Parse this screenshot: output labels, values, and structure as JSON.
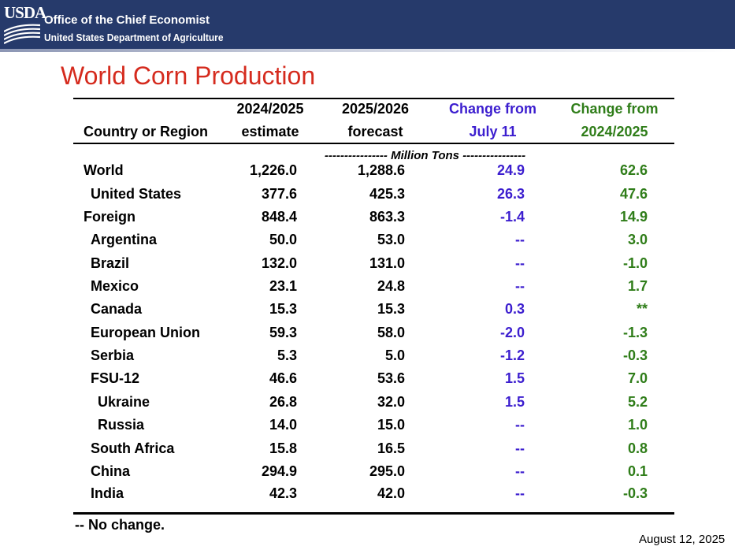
{
  "header": {
    "logo_text": "USDA",
    "office": "Office of the Chief Economist",
    "department": "United States Department of Agriculture"
  },
  "title": "World Corn Production",
  "table": {
    "columns": [
      {
        "line1": "",
        "line2": "Country or Region"
      },
      {
        "line1": "2024/2025",
        "line2": "estimate"
      },
      {
        "line1": "2025/2026",
        "line2": "forecast"
      },
      {
        "line1": "Change from",
        "line2": "July 11"
      },
      {
        "line1": "Change from",
        "line2": "2024/2025"
      }
    ],
    "units": "---------------- Million Tons ----------------",
    "rows": [
      {
        "name": "World",
        "est": "1,226.0",
        "fc": "1,288.6",
        "chg_july": "24.9",
        "chg_prev": "62.6"
      },
      {
        "name": "United States",
        "est": "377.6",
        "fc": "425.3",
        "chg_july": "26.3",
        "chg_prev": "47.6"
      },
      {
        "name": "Foreign",
        "est": "848.4",
        "fc": "863.3",
        "chg_july": "-1.4",
        "chg_prev": "14.9"
      },
      {
        "name": "Argentina",
        "est": "50.0",
        "fc": "53.0",
        "chg_july": "--",
        "chg_prev": "3.0"
      },
      {
        "name": "Brazil",
        "est": "132.0",
        "fc": "131.0",
        "chg_july": "--",
        "chg_prev": "-1.0"
      },
      {
        "name": "Mexico",
        "est": "23.1",
        "fc": "24.8",
        "chg_july": "--",
        "chg_prev": "1.7"
      },
      {
        "name": "Canada",
        "est": "15.3",
        "fc": "15.3",
        "chg_july": "0.3",
        "chg_prev": "**"
      },
      {
        "name": "European Union",
        "est": "59.3",
        "fc": "58.0",
        "chg_july": "-2.0",
        "chg_prev": "-1.3"
      },
      {
        "name": "Serbia",
        "est": "5.3",
        "fc": "5.0",
        "chg_july": "-1.2",
        "chg_prev": "-0.3"
      },
      {
        "name": "FSU-12",
        "est": "46.6",
        "fc": "53.6",
        "chg_july": "1.5",
        "chg_prev": "7.0"
      },
      {
        "name": "Ukraine",
        "est": "26.8",
        "fc": "32.0",
        "chg_july": "1.5",
        "chg_prev": "5.2"
      },
      {
        "name": "Russia",
        "est": "14.0",
        "fc": "15.0",
        "chg_july": "--",
        "chg_prev": "1.0"
      },
      {
        "name": "South Africa",
        "est": "15.8",
        "fc": "16.5",
        "chg_july": "--",
        "chg_prev": "0.8"
      },
      {
        "name": "China",
        "est": "294.9",
        "fc": "295.0",
        "chg_july": "--",
        "chg_prev": "0.1"
      },
      {
        "name": "India",
        "est": "42.3",
        "fc": "42.0",
        "chg_july": "--",
        "chg_prev": "-0.3"
      }
    ]
  },
  "footnote": "-- No change.",
  "date": "August 12, 2025",
  "colors": {
    "banner": "#263a6b",
    "title": "#d52b1e",
    "change_july": "#3c1ecf",
    "change_prev": "#2f7d19"
  }
}
